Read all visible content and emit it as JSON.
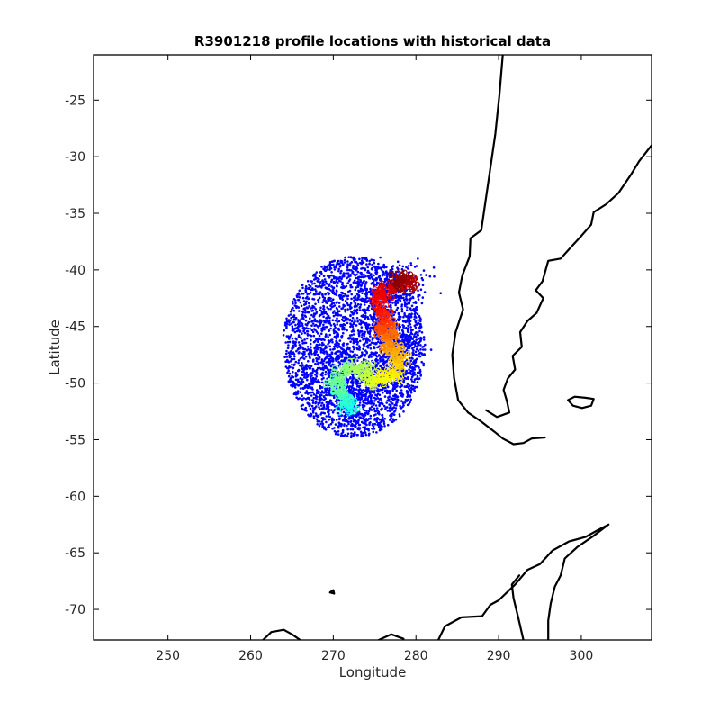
{
  "chart_data": {
    "type": "scatter",
    "title": "R3901218 profile locations with historical data",
    "xlabel": "Longitude",
    "ylabel": "Latitude",
    "xlim": [
      241,
      308.5
    ],
    "ylim": [
      -72.7,
      -21
    ],
    "xticks": [
      250,
      260,
      270,
      280,
      290,
      300
    ],
    "yticks": [
      -25,
      -30,
      -35,
      -40,
      -45,
      -50,
      -55,
      -60,
      -65,
      -70
    ],
    "xtick_labels": [
      "250",
      "260",
      "270",
      "280",
      "290",
      "300"
    ],
    "ytick_labels": [
      "-25",
      "-30",
      "-35",
      "-40",
      "-45",
      "-50",
      "-55",
      "-60",
      "-65",
      "-70"
    ],
    "grid": false,
    "legend": "none",
    "historical_color": "#0000ff",
    "historical_cloud": {
      "center": [
        272.5,
        -46.8
      ],
      "radius_lon": 8.6,
      "radius_lat": 8.0,
      "lon_range": [
        263.8,
        286.0
      ],
      "lat_range": [
        -54.8,
        -38.7
      ]
    },
    "float_track": {
      "colormap": "jet",
      "points": [
        [
          277.8,
          -41.0
        ],
        [
          278.6,
          -40.8
        ],
        [
          279.5,
          -41.3
        ],
        [
          276.6,
          -41.6
        ],
        [
          275.5,
          -42.2
        ],
        [
          275.7,
          -43.6
        ],
        [
          276.3,
          -44.5
        ],
        [
          275.9,
          -45.3
        ],
        [
          277.2,
          -45.6
        ],
        [
          276.1,
          -46.4
        ],
        [
          277.5,
          -47.1
        ],
        [
          278.3,
          -48.0
        ],
        [
          277.6,
          -49.0
        ],
        [
          276.0,
          -49.6
        ],
        [
          275.1,
          -50.0
        ],
        [
          273.9,
          -49.0
        ],
        [
          272.6,
          -48.6
        ],
        [
          271.0,
          -48.9
        ],
        [
          270.4,
          -50.2
        ],
        [
          271.1,
          -51.0
        ],
        [
          271.8,
          -51.6
        ],
        [
          271.5,
          -52.3
        ]
      ]
    },
    "coastlines": [
      [
        [
          290.5,
          -21.0
        ],
        [
          290.1,
          -24.5
        ],
        [
          289.6,
          -28.0
        ],
        [
          288.9,
          -31.5
        ],
        [
          288.4,
          -34.0
        ],
        [
          287.9,
          -36.5
        ],
        [
          286.6,
          -37.2
        ],
        [
          286.5,
          -38.8
        ],
        [
          285.6,
          -40.5
        ],
        [
          285.2,
          -42.0
        ],
        [
          285.7,
          -43.5
        ],
        [
          284.8,
          -45.5
        ],
        [
          284.4,
          -47.5
        ],
        [
          284.6,
          -49.5
        ],
        [
          285.1,
          -51.5
        ],
        [
          286.3,
          -52.6
        ],
        [
          287.9,
          -53.4
        ],
        [
          289.5,
          -54.3
        ],
        [
          290.5,
          -54.9
        ],
        [
          291.8,
          -55.4
        ],
        [
          293.0,
          -55.3
        ],
        [
          294.0,
          -54.9
        ],
        [
          295.6,
          -54.8
        ]
      ],
      [
        [
          308.5,
          -29.0
        ],
        [
          307.0,
          -30.4
        ],
        [
          306.0,
          -31.6
        ],
        [
          304.5,
          -33.2
        ],
        [
          303.0,
          -34.2
        ],
        [
          301.5,
          -34.9
        ],
        [
          301.2,
          -36.0
        ],
        [
          300.0,
          -37.0
        ],
        [
          298.5,
          -38.2
        ],
        [
          297.5,
          -39.0
        ],
        [
          296.0,
          -39.2
        ],
        [
          295.3,
          -41.0
        ],
        [
          294.5,
          -41.8
        ],
        [
          295.4,
          -42.5
        ],
        [
          294.6,
          -43.8
        ],
        [
          293.5,
          -44.5
        ],
        [
          292.6,
          -45.5
        ],
        [
          292.8,
          -46.8
        ],
        [
          291.7,
          -47.6
        ],
        [
          292.0,
          -48.8
        ],
        [
          291.1,
          -49.6
        ],
        [
          290.6,
          -50.6
        ],
        [
          291.0,
          -51.6
        ],
        [
          291.3,
          -52.6
        ],
        [
          289.8,
          -53.0
        ],
        [
          288.5,
          -52.4
        ]
      ],
      [
        [
          298.4,
          -51.5
        ],
        [
          299.2,
          -51.2
        ],
        [
          300.5,
          -51.3
        ],
        [
          301.5,
          -51.4
        ],
        [
          301.2,
          -52.0
        ],
        [
          300.1,
          -52.2
        ],
        [
          299.0,
          -52.0
        ],
        [
          298.4,
          -51.5
        ]
      ],
      [
        [
          282.5,
          -73.0
        ],
        [
          283.5,
          -71.5
        ],
        [
          285.5,
          -70.7
        ],
        [
          288.0,
          -70.6
        ],
        [
          289.0,
          -69.6
        ],
        [
          290.0,
          -69.2
        ],
        [
          292.0,
          -67.8
        ],
        [
          293.5,
          -66.5
        ],
        [
          295.0,
          -66.0
        ],
        [
          296.5,
          -64.8
        ],
        [
          298.5,
          -64.0
        ],
        [
          300.5,
          -63.6
        ],
        [
          302.0,
          -63.0
        ],
        [
          303.3,
          -62.5
        ],
        [
          301.5,
          -63.5
        ],
        [
          299.5,
          -64.5
        ],
        [
          298.0,
          -65.5
        ],
        [
          297.5,
          -67.0
        ],
        [
          296.8,
          -68.0
        ],
        [
          296.3,
          -69.5
        ],
        [
          296.0,
          -71.0
        ],
        [
          296.0,
          -72.7
        ]
      ],
      [
        [
          293.0,
          -72.7
        ],
        [
          292.4,
          -70.8
        ],
        [
          291.8,
          -69.0
        ],
        [
          291.6,
          -67.8
        ],
        [
          292.5,
          -67.0
        ]
      ],
      [
        [
          261.5,
          -72.7
        ],
        [
          262.5,
          -72.0
        ],
        [
          264.0,
          -71.8
        ],
        [
          265.0,
          -72.2
        ],
        [
          266.0,
          -72.7
        ]
      ],
      [
        [
          275.5,
          -72.7
        ],
        [
          277.0,
          -72.2
        ],
        [
          278.5,
          -72.6
        ]
      ],
      [
        [
          269.6,
          -68.5
        ],
        [
          270.0,
          -68.3
        ],
        [
          270.1,
          -68.6
        ],
        [
          269.6,
          -68.5
        ]
      ]
    ]
  }
}
